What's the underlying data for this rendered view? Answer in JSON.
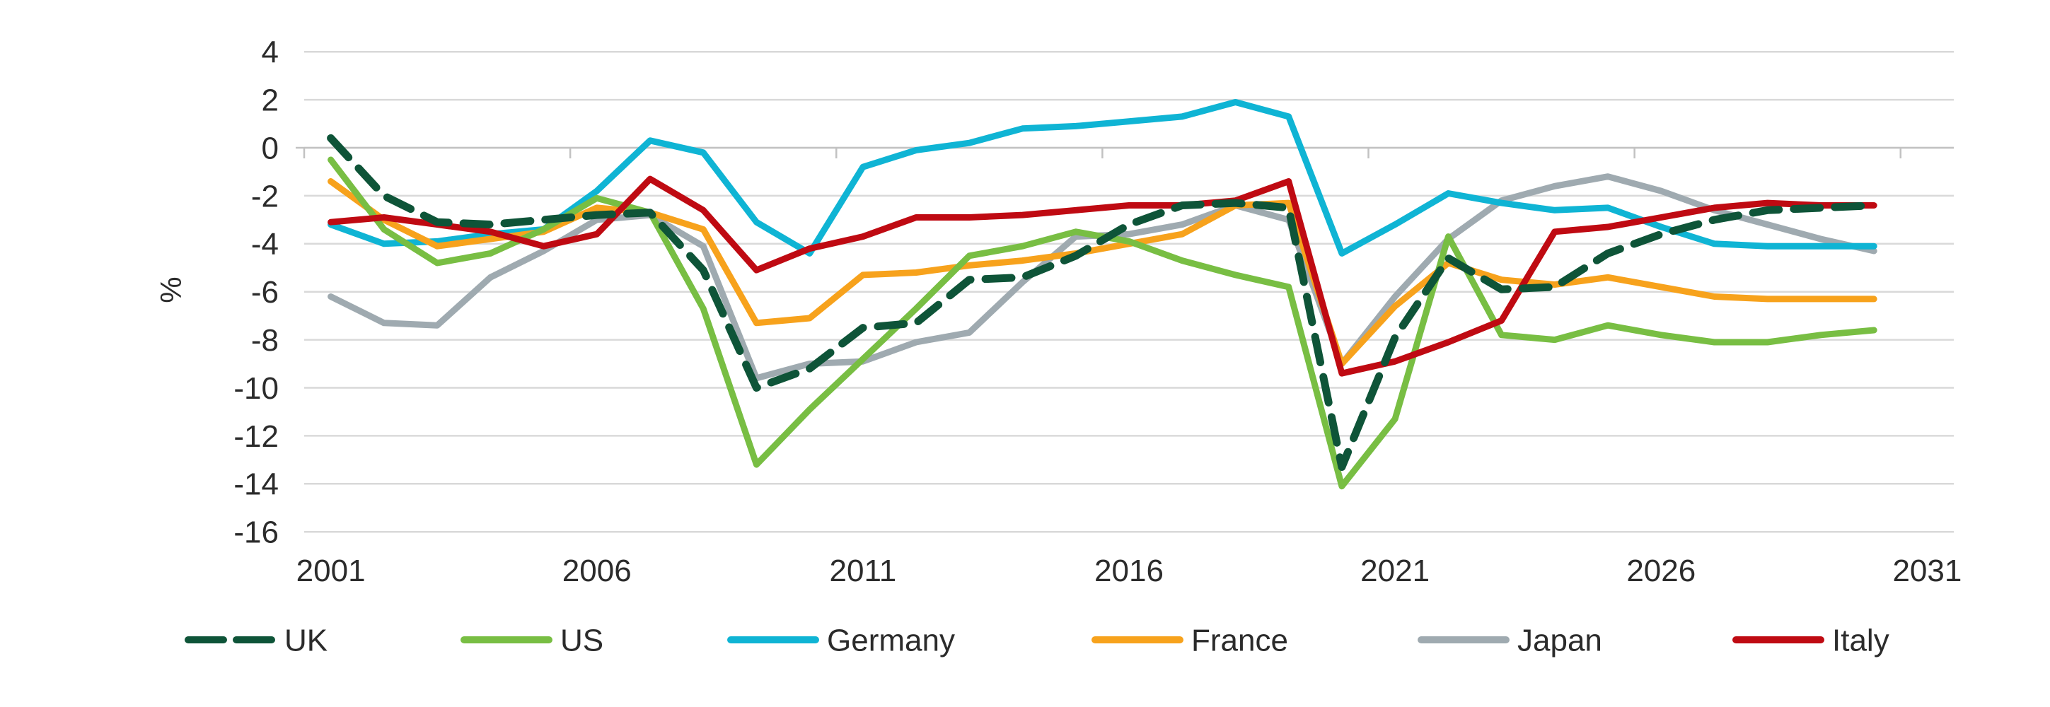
{
  "chart_data": {
    "type": "line",
    "title": "",
    "ylabel": "%",
    "xlabel": "",
    "grid": true,
    "legend_position": "bottom",
    "x": [
      2001,
      2002,
      2003,
      2004,
      2005,
      2006,
      2007,
      2008,
      2009,
      2010,
      2011,
      2012,
      2013,
      2014,
      2015,
      2016,
      2017,
      2018,
      2019,
      2020,
      2021,
      2022,
      2023,
      2024,
      2025,
      2026,
      2027,
      2028,
      2029,
      2030
    ],
    "x_tick_labels": [
      "2001",
      "2006",
      "2011",
      "2016",
      "2021",
      "2026",
      "2031"
    ],
    "y_ticks": [
      4,
      2,
      0,
      -2,
      -4,
      -6,
      -8,
      -10,
      -12,
      -14,
      -16
    ],
    "y_tick_labels": [
      "4",
      "2",
      "0",
      "-2",
      "-4",
      "-6",
      "-8",
      "-10",
      "-12",
      "-14",
      "-16"
    ],
    "ylim": [
      -16,
      4
    ],
    "series": [
      {
        "name": "UK",
        "color": "#0e5438",
        "dashed": true,
        "values": [
          0.4,
          -2.0,
          -3.1,
          -3.2,
          -3.0,
          -2.8,
          -2.7,
          -5.1,
          -10.0,
          -9.2,
          -7.5,
          -7.3,
          -5.5,
          -5.4,
          -4.5,
          -3.2,
          -2.4,
          -2.3,
          -2.5,
          -13.3,
          -7.9,
          -4.6,
          -5.9,
          -5.8,
          -4.4,
          -3.6,
          -3.0,
          -2.6,
          -2.5,
          -2.4
        ]
      },
      {
        "name": "US",
        "color": "#78be43",
        "dashed": false,
        "values": [
          -0.5,
          -3.4,
          -4.8,
          -4.4,
          -3.4,
          -2.1,
          -2.7,
          -6.7,
          -13.2,
          -10.9,
          -8.8,
          -6.7,
          -4.5,
          -4.1,
          -3.5,
          -3.9,
          -4.7,
          -5.3,
          -5.8,
          -14.1,
          -11.3,
          -3.7,
          -7.8,
          -8.0,
          -7.4,
          -7.8,
          -8.1,
          -8.1,
          -7.8,
          -7.6
        ]
      },
      {
        "name": "Germany",
        "color": "#0fb4d4",
        "dashed": false,
        "values": [
          -3.2,
          -4.0,
          -3.9,
          -3.6,
          -3.4,
          -1.8,
          0.3,
          -0.2,
          -3.1,
          -4.4,
          -0.8,
          -0.1,
          0.2,
          0.8,
          0.9,
          1.1,
          1.3,
          1.9,
          1.3,
          -4.4,
          -3.2,
          -1.9,
          -2.3,
          -2.6,
          -2.5,
          -3.3,
          -4.0,
          -4.1,
          -4.1,
          -4.1
        ]
      },
      {
        "name": "France",
        "color": "#f7a21c",
        "dashed": false,
        "values": [
          -1.4,
          -3.0,
          -4.1,
          -3.8,
          -3.5,
          -2.5,
          -2.7,
          -3.4,
          -7.3,
          -7.1,
          -5.3,
          -5.2,
          -4.9,
          -4.7,
          -4.4,
          -4.0,
          -3.6,
          -2.4,
          -2.3,
          -9.0,
          -6.6,
          -4.8,
          -5.5,
          -5.7,
          -5.4,
          -5.8,
          -6.2,
          -6.3,
          -6.3,
          -6.3
        ]
      },
      {
        "name": "Japan",
        "color": "#9faab0",
        "dashed": false,
        "values": [
          -6.2,
          -7.3,
          -7.4,
          -5.4,
          -4.3,
          -3.0,
          -2.8,
          -4.1,
          -9.6,
          -9.0,
          -8.9,
          -8.1,
          -7.7,
          -5.6,
          -3.7,
          -3.6,
          -3.2,
          -2.4,
          -3.0,
          -9.0,
          -6.2,
          -3.8,
          -2.2,
          -1.6,
          -1.2,
          -1.8,
          -2.6,
          -3.2,
          -3.8,
          -4.3
        ]
      },
      {
        "name": "Italy",
        "color": "#bf0a12",
        "dashed": false,
        "values": [
          -3.1,
          -2.9,
          -3.2,
          -3.5,
          -4.1,
          -3.6,
          -1.3,
          -2.6,
          -5.1,
          -4.2,
          -3.7,
          -2.9,
          -2.9,
          -2.8,
          -2.6,
          -2.4,
          -2.4,
          -2.2,
          -1.4,
          -9.4,
          -8.9,
          -8.1,
          -7.2,
          -3.5,
          -3.3,
          -2.9,
          -2.5,
          -2.3,
          -2.4,
          -2.4
        ]
      }
    ],
    "legend": [
      "UK",
      "US",
      "Germany",
      "France",
      "Japan",
      "Italy"
    ],
    "colors": {
      "background": "#ffffff",
      "gridline": "#d9d9d9",
      "axis": "#c2c2c2",
      "text": "#2b2b2b"
    }
  }
}
